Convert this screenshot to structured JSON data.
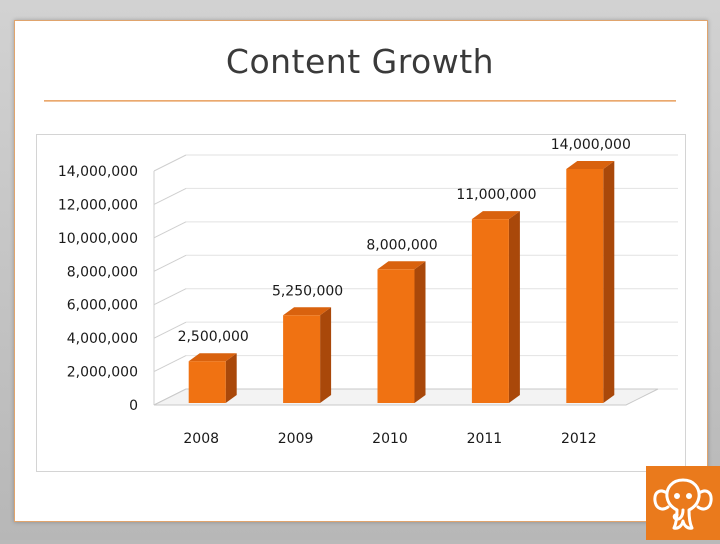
{
  "slide": {
    "title": "Content Growth"
  },
  "colors": {
    "bar_front": "#f07212",
    "bar_side": "#a9480a",
    "bar_top": "#d9620e",
    "rule": "#e69b57",
    "logo_bg": "#ea7a1c"
  },
  "logo": {
    "icon": "elephant-logo-icon"
  },
  "chart_data": {
    "type": "bar",
    "title": "",
    "xlabel": "",
    "ylabel": "",
    "categories": [
      "2008",
      "2009",
      "2010",
      "2011",
      "2012"
    ],
    "values": [
      2500000,
      5250000,
      8000000,
      11000000,
      14000000
    ],
    "value_labels": [
      "2,500,000",
      "5,250,000",
      "8,000,000",
      "11,000,000",
      "14,000,000"
    ],
    "ylim": [
      0,
      14000000
    ],
    "yticks": [
      0,
      2000000,
      4000000,
      6000000,
      8000000,
      10000000,
      12000000,
      14000000
    ],
    "ytick_labels": [
      "0",
      "2,000,000",
      "4,000,000",
      "6,000,000",
      "8,000,000",
      "10,000,000",
      "12,000,000",
      "14,000,000"
    ],
    "grid": true,
    "legend": "none",
    "style": "3d"
  }
}
